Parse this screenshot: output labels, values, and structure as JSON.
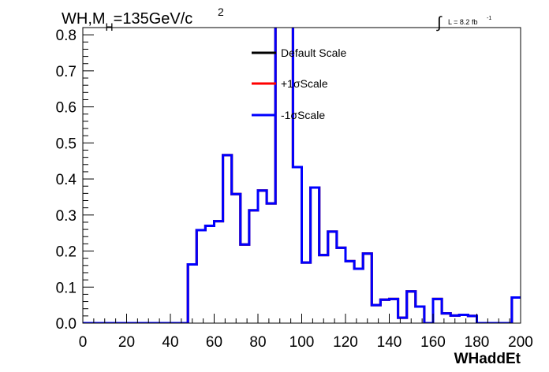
{
  "chart_data": {
    "type": "line",
    "title_main": "WH,M",
    "title_sub": "H",
    "title_rest": "=135GeV/c",
    "title_sup": "2",
    "lumi_symbol": "∫",
    "lumi_text": "L = 8.2 fb",
    "lumi_sup": "-1",
    "xlabel": "WHaddEt",
    "xlim": [
      0,
      200
    ],
    "ylim": [
      0,
      0.82
    ],
    "xticks": [
      0,
      20,
      40,
      60,
      80,
      100,
      120,
      140,
      160,
      180,
      200
    ],
    "xtick_labels": [
      "0",
      "20",
      "40",
      "60",
      "80",
      "100",
      "120",
      "140",
      "160",
      "180",
      "200"
    ],
    "yticks": [
      0,
      0.1,
      0.2,
      0.3,
      0.4,
      0.5,
      0.6,
      0.7,
      0.8
    ],
    "ytick_labels": [
      "0.0",
      "0.1",
      "0.2",
      "0.3",
      "0.4",
      "0.5",
      "0.6",
      "0.7",
      "0.8"
    ],
    "grid": false,
    "legend_position": "top-center",
    "bin_edges": [
      0,
      4,
      8,
      12,
      16,
      20,
      24,
      28,
      32,
      36,
      40,
      44,
      48,
      52,
      56,
      60,
      64,
      68,
      72,
      76,
      80,
      84,
      88,
      92,
      96,
      100,
      104,
      108,
      112,
      116,
      120,
      124,
      128,
      132,
      136,
      140,
      144,
      148,
      152,
      156,
      160,
      164,
      168,
      172,
      176,
      180,
      184,
      188,
      192,
      196,
      200
    ],
    "series": [
      {
        "name": "Default Scale",
        "color": "#000000",
        "values": [
          0,
          0,
          0,
          0,
          0,
          0,
          0,
          0,
          0,
          0,
          0,
          0,
          0.163,
          0.258,
          0.27,
          0.283,
          0.466,
          0.358,
          0.218,
          0.313,
          0.368,
          0.332,
          0.86,
          0.86,
          0.433,
          0.168,
          0.376,
          0.189,
          0.254,
          0.209,
          0.172,
          0.151,
          0.193,
          0.05,
          0.065,
          0.067,
          0.015,
          0.088,
          0.046,
          0,
          0.067,
          0.027,
          0.021,
          0.023,
          0.02,
          0,
          0,
          0,
          0,
          0.071
        ]
      },
      {
        "name": "+1σScale",
        "color": "#ff0000",
        "values": [
          0,
          0,
          0,
          0,
          0,
          0,
          0,
          0,
          0,
          0,
          0,
          0,
          0.163,
          0.258,
          0.27,
          0.283,
          0.466,
          0.358,
          0.218,
          0.313,
          0.368,
          0.332,
          0.86,
          0.86,
          0.433,
          0.168,
          0.376,
          0.189,
          0.254,
          0.209,
          0.172,
          0.151,
          0.193,
          0.05,
          0.065,
          0.067,
          0.015,
          0.088,
          0.046,
          0,
          0.067,
          0.027,
          0.021,
          0.023,
          0.02,
          0,
          0,
          0,
          0,
          0.071
        ]
      },
      {
        "name": "-1σScale",
        "color": "#0000ff",
        "values": [
          0,
          0,
          0,
          0,
          0,
          0,
          0,
          0,
          0,
          0,
          0,
          0,
          0.163,
          0.258,
          0.27,
          0.283,
          0.466,
          0.358,
          0.218,
          0.313,
          0.368,
          0.332,
          0.86,
          0.86,
          0.433,
          0.168,
          0.376,
          0.189,
          0.254,
          0.209,
          0.172,
          0.151,
          0.193,
          0.05,
          0.065,
          0.067,
          0.015,
          0.088,
          0.046,
          0,
          0.067,
          0.027,
          0.021,
          0.023,
          0.02,
          0,
          0,
          0,
          0,
          0.071
        ]
      }
    ]
  }
}
